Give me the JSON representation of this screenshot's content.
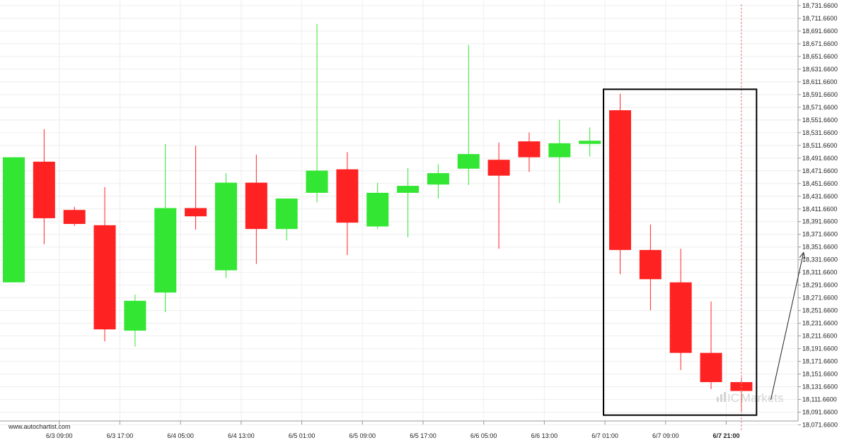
{
  "source_label": "www.autochartist.com",
  "watermark": {
    "prefix": "IC",
    "text": "Markets"
  },
  "colors": {
    "bull": "#33e633",
    "bear": "#ff2222",
    "grid": "#eeeeee",
    "axis": "#999999",
    "box": "#000000",
    "vline": "#d08080"
  },
  "chart_data": {
    "type": "candlestick",
    "title": "",
    "xlabel": "",
    "ylabel": "",
    "ylim": [
      18067.66,
      18735.66
    ],
    "y_ticks": [
      "18,731.6600",
      "18,711.6600",
      "18,691.6600",
      "18,671.6600",
      "18,651.6600",
      "18,631.6600",
      "18,611.6600",
      "18,591.6600",
      "18,571.6600",
      "18,551.6600",
      "18,531.6600",
      "18,511.6600",
      "18,491.6600",
      "18,471.6600",
      "18,451.6600",
      "18,431.6600",
      "18,411.6600",
      "18,391.6600",
      "18,371.6600",
      "18,351.6600",
      "18,331.6600",
      "18,311.6600",
      "18,291.6600",
      "18,271.6600",
      "18,251.6600",
      "18,231.6600",
      "18,211.6600",
      "18,191.6600",
      "18,171.6600",
      "18,151.6600",
      "18,131.6600",
      "18,111.6600",
      "18,091.6600",
      "18,071.6600"
    ],
    "x_ticks": [
      {
        "label": "6/3 09:00",
        "index": 1.5
      },
      {
        "label": "6/3 17:00",
        "index": 3.5
      },
      {
        "label": "6/4 05:00",
        "index": 5.5
      },
      {
        "label": "6/4 13:00",
        "index": 7.5
      },
      {
        "label": "6/5 01:00",
        "index": 9.5
      },
      {
        "label": "6/5 09:00",
        "index": 11.5
      },
      {
        "label": "6/5 17:00",
        "index": 13.5
      },
      {
        "label": "6/6 05:00",
        "index": 15.5
      },
      {
        "label": "6/6 13:00",
        "index": 17.5
      },
      {
        "label": "6/7 01:00",
        "index": 19.5
      },
      {
        "label": "6/7 09:00",
        "index": 21.5
      },
      {
        "label": "6/7 21:00",
        "index": 23.5,
        "bold": true
      }
    ],
    "candles": [
      {
        "o": 18296,
        "h": 18493,
        "l": 18296,
        "c": 18493
      },
      {
        "o": 18486,
        "h": 18537,
        "l": 18356,
        "c": 18397
      },
      {
        "o": 18410,
        "h": 18415,
        "l": 18385,
        "c": 18388
      },
      {
        "o": 18386,
        "h": 18446,
        "l": 18203,
        "c": 18222
      },
      {
        "o": 18220,
        "h": 18277,
        "l": 18195,
        "c": 18267
      },
      {
        "o": 18280,
        "h": 18514,
        "l": 18249,
        "c": 18413
      },
      {
        "o": 18413,
        "h": 18511,
        "l": 18379,
        "c": 18400
      },
      {
        "o": 18315,
        "h": 18468,
        "l": 18303,
        "c": 18453
      },
      {
        "o": 18453,
        "h": 18497,
        "l": 18325,
        "c": 18380
      },
      {
        "o": 18380,
        "h": 18428,
        "l": 18362,
        "c": 18428
      },
      {
        "o": 18437,
        "h": 18703,
        "l": 18422,
        "c": 18472
      },
      {
        "o": 18474,
        "h": 18501,
        "l": 18339,
        "c": 18390
      },
      {
        "o": 18384,
        "h": 18453,
        "l": 18380,
        "c": 18437
      },
      {
        "o": 18437,
        "h": 18476,
        "l": 18367,
        "c": 18448
      },
      {
        "o": 18450,
        "h": 18482,
        "l": 18428,
        "c": 18468
      },
      {
        "o": 18475,
        "h": 18670,
        "l": 18449,
        "c": 18498
      },
      {
        "o": 18489,
        "h": 18516,
        "l": 18349,
        "c": 18464
      },
      {
        "o": 18518,
        "h": 18532,
        "l": 18470,
        "c": 18493
      },
      {
        "o": 18493,
        "h": 18552,
        "l": 18421,
        "c": 18515
      },
      {
        "o": 18514,
        "h": 18540,
        "l": 18494,
        "c": 18519
      },
      {
        "o": 18567,
        "h": 18593,
        "l": 18309,
        "c": 18347
      },
      {
        "o": 18347,
        "h": 18387,
        "l": 18252,
        "c": 18301
      },
      {
        "o": 18296,
        "h": 18349,
        "l": 18158,
        "c": 18185
      },
      {
        "o": 18185,
        "h": 18266,
        "l": 18128,
        "c": 18139
      },
      {
        "o": 18139,
        "h": 18146,
        "l": 18093,
        "c": 18125
      }
    ],
    "pattern_box": {
      "from_index": 20,
      "to_index": 24.5,
      "top": 18600,
      "bottom": 18087
    },
    "current_time_index": 24,
    "forecast_arrow": {
      "from_index": 24.97,
      "from_value": 18111,
      "to_index": 26.05,
      "to_value": 18343
    }
  }
}
